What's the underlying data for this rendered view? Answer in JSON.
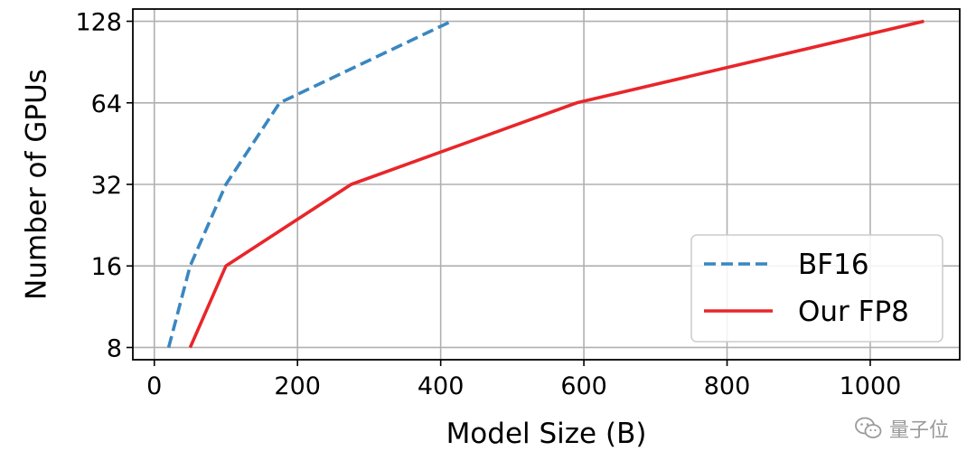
{
  "chart_data": {
    "type": "line",
    "xlabel": "Model Size (B)",
    "ylabel": "Number of GPUs",
    "xlim": [
      -30,
      1125
    ],
    "ylim_log2": [
      2.85,
      7.15
    ],
    "y_scale": "log2",
    "x_ticks": [
      0,
      200,
      400,
      600,
      800,
      1000
    ],
    "y_ticks": [
      8,
      16,
      32,
      64,
      128
    ],
    "grid": true,
    "legend_position": "lower-right",
    "series": [
      {
        "name": "BF16",
        "color": "#3a87c0",
        "style": "dashed",
        "x": [
          20,
          50,
          100,
          175,
          415
        ],
        "y": [
          8,
          16,
          32,
          64,
          128
        ]
      },
      {
        "name": "Our FP8",
        "color": "#e8262a",
        "style": "solid",
        "x": [
          50,
          100,
          275,
          590,
          1075
        ],
        "y": [
          8,
          16,
          32,
          64,
          128
        ]
      }
    ]
  },
  "watermark": {
    "text": "量子位",
    "icon": "wechat-icon"
  }
}
